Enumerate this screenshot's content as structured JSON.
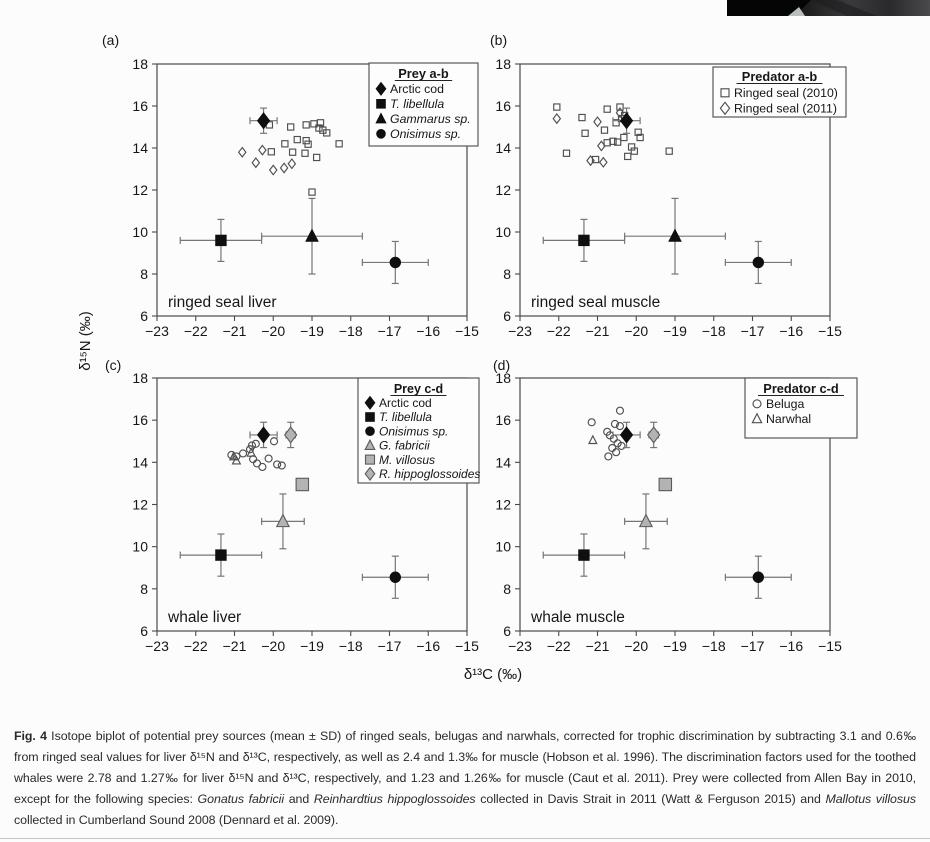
{
  "figure": {
    "x_axis_label": "δ¹³C (‰)",
    "y_axis_label": "δ¹⁵N (‰)"
  },
  "colors": {
    "text": "#161616",
    "axis": "#4a4a4a",
    "error_bar": "#767676",
    "marker_black": "#0f0f0f",
    "marker_open_stroke": "#4f4f4f",
    "marker_gray": "#b3b3b3",
    "marker_gray_stroke": "#5a5a5a",
    "legend_bg": "#fdfdfd",
    "page_bg": "#fcfcfc"
  },
  "chart_data": [
    {
      "id": "a",
      "type": "scatter",
      "panel_label": "(a)",
      "inner_label": "ringed seal liver",
      "xlim": [
        -23,
        -15
      ],
      "ylim": [
        6,
        18
      ],
      "x_ticks": [
        -23,
        -22,
        -21,
        -20,
        -19,
        -18,
        -17,
        -16,
        -15
      ],
      "y_ticks": [
        6,
        8,
        10,
        12,
        14,
        16,
        18
      ],
      "legend": {
        "title": "Prey a-b",
        "items": [
          {
            "marker": "filled-diamond",
            "label": "Arctic cod",
            "italic": false
          },
          {
            "marker": "filled-square",
            "label": "T. libellula",
            "italic": true
          },
          {
            "marker": "filled-triangle",
            "label": "Gammarus sp.",
            "italic": true
          },
          {
            "marker": "filled-circle",
            "label": "Onisimus sp.",
            "italic": true
          }
        ]
      },
      "mean_points": [
        {
          "name": "Arctic cod",
          "marker": "filled-diamond",
          "x": -20.25,
          "y": 15.3,
          "xerr": 0.35,
          "yerr": 0.6
        },
        {
          "name": "T. libellula",
          "marker": "filled-square",
          "x": -21.35,
          "y": 9.6,
          "xerr": 1.05,
          "yerr": 1.0
        },
        {
          "name": "Gammarus sp.",
          "marker": "filled-triangle",
          "x": -19.0,
          "y": 9.8,
          "xerr": 1.3,
          "yerr": 1.8
        },
        {
          "name": "Onisimus sp.",
          "marker": "filled-circle",
          "x": -16.85,
          "y": 8.55,
          "xerr": 0.85,
          "yerr": 1.0
        }
      ],
      "series": [
        {
          "name": "Ringed seal (2010)",
          "marker": "open-square",
          "points": [
            [
              -20.1,
              15.1
            ],
            [
              -19.55,
              15.0
            ],
            [
              -19.38,
              14.4
            ],
            [
              -19.15,
              15.1
            ],
            [
              -18.95,
              15.15
            ],
            [
              -18.82,
              14.95
            ],
            [
              -18.78,
              15.2
            ],
            [
              -18.72,
              14.85
            ],
            [
              -18.62,
              14.72
            ],
            [
              -19.15,
              14.35
            ],
            [
              -19.1,
              14.18
            ],
            [
              -19.7,
              14.2
            ],
            [
              -19.5,
              13.8
            ],
            [
              -19.18,
              13.75
            ],
            [
              -18.88,
              13.55
            ],
            [
              -18.3,
              14.2
            ],
            [
              -20.05,
              13.82
            ],
            [
              -19.0,
              11.9
            ]
          ]
        },
        {
          "name": "Ringed seal (2011)",
          "marker": "open-diamond",
          "points": [
            [
              -20.8,
              13.8
            ],
            [
              -20.45,
              13.3
            ],
            [
              -20.0,
              12.95
            ],
            [
              -19.72,
              13.05
            ],
            [
              -19.52,
              13.25
            ],
            [
              -20.28,
              13.9
            ]
          ]
        }
      ]
    },
    {
      "id": "b",
      "type": "scatter",
      "panel_label": "(b)",
      "inner_label": "ringed seal muscle",
      "xlim": [
        -23,
        -15
      ],
      "ylim": [
        6,
        18
      ],
      "x_ticks": [
        -23,
        -22,
        -21,
        -20,
        -19,
        -18,
        -17,
        -16,
        -15
      ],
      "y_ticks": [
        6,
        8,
        10,
        12,
        14,
        16,
        18
      ],
      "legend": {
        "title": "Predator a-b",
        "items": [
          {
            "marker": "open-square",
            "label": "Ringed seal (2010)",
            "italic": false
          },
          {
            "marker": "open-diamond",
            "label": "Ringed seal (2011)",
            "italic": false
          }
        ]
      },
      "mean_points": [
        {
          "name": "Arctic cod",
          "marker": "filled-diamond",
          "x": -20.25,
          "y": 15.3,
          "xerr": 0.35,
          "yerr": 0.6
        },
        {
          "name": "T. libellula",
          "marker": "filled-square",
          "x": -21.35,
          "y": 9.6,
          "xerr": 1.05,
          "yerr": 1.0
        },
        {
          "name": "Gammarus sp.",
          "marker": "filled-triangle",
          "x": -19.0,
          "y": 9.8,
          "xerr": 1.3,
          "yerr": 1.8
        },
        {
          "name": "Onisimus sp.",
          "marker": "filled-circle",
          "x": -16.85,
          "y": 8.55,
          "xerr": 0.85,
          "yerr": 1.0
        }
      ],
      "series": [
        {
          "name": "Ringed seal (2010)",
          "marker": "open-square",
          "points": [
            [
              -22.05,
              15.95
            ],
            [
              -21.4,
              15.45
            ],
            [
              -20.75,
              15.85
            ],
            [
              -20.42,
              15.95
            ],
            [
              -20.3,
              15.55
            ],
            [
              -21.32,
              14.7
            ],
            [
              -20.82,
              14.85
            ],
            [
              -20.52,
              15.2
            ],
            [
              -20.38,
              15.4
            ],
            [
              -20.32,
              14.5
            ],
            [
              -20.6,
              14.32
            ],
            [
              -20.75,
              14.25
            ],
            [
              -20.48,
              14.28
            ],
            [
              -19.95,
              14.75
            ],
            [
              -19.9,
              14.5
            ],
            [
              -20.12,
              14.05
            ],
            [
              -20.05,
              13.85
            ],
            [
              -20.22,
              13.6
            ],
            [
              -21.8,
              13.75
            ],
            [
              -21.05,
              13.45
            ],
            [
              -19.15,
              13.85
            ]
          ]
        },
        {
          "name": "Ringed seal (2011)",
          "marker": "open-diamond",
          "points": [
            [
              -22.05,
              15.4
            ],
            [
              -21.0,
              15.25
            ],
            [
              -20.42,
              15.68
            ],
            [
              -20.9,
              14.1
            ],
            [
              -21.18,
              13.4
            ],
            [
              -20.85,
              13.32
            ]
          ]
        }
      ]
    },
    {
      "id": "c",
      "type": "scatter",
      "panel_label": "(c)",
      "inner_label": "whale liver",
      "xlim": [
        -23,
        -15
      ],
      "ylim": [
        6,
        18
      ],
      "x_ticks": [
        -23,
        -22,
        -21,
        -20,
        -19,
        -18,
        -17,
        -16,
        -15
      ],
      "y_ticks": [
        6,
        8,
        10,
        12,
        14,
        16,
        18
      ],
      "legend": {
        "title": "Prey c-d",
        "items": [
          {
            "marker": "filled-diamond",
            "label": "Arctic cod",
            "italic": false
          },
          {
            "marker": "filled-square",
            "label": "T. libellula",
            "italic": true
          },
          {
            "marker": "filled-circle",
            "label": "Onisimus sp.",
            "italic": true
          },
          {
            "marker": "gray-triangle",
            "label": "G. fabricii",
            "italic": true
          },
          {
            "marker": "gray-square",
            "label": "M. villosus",
            "italic": true
          },
          {
            "marker": "gray-diamond",
            "label": "R. hippoglossoides",
            "italic": true
          }
        ]
      },
      "mean_points": [
        {
          "name": "Arctic cod",
          "marker": "filled-diamond",
          "x": -20.25,
          "y": 15.3,
          "xerr": 0.35,
          "yerr": 0.6
        },
        {
          "name": "T. libellula",
          "marker": "filled-square",
          "x": -21.35,
          "y": 9.6,
          "xerr": 1.05,
          "yerr": 1.0
        },
        {
          "name": "Onisimus sp.",
          "marker": "filled-circle",
          "x": -16.85,
          "y": 8.55,
          "xerr": 0.85,
          "yerr": 1.0
        },
        {
          "name": "G. fabricii",
          "marker": "gray-triangle",
          "x": -19.75,
          "y": 11.2,
          "xerr": 0.55,
          "yerr": 1.3
        },
        {
          "name": "M. villosus",
          "marker": "gray-square",
          "x": -19.25,
          "y": 12.95
        },
        {
          "name": "R. hippoglossoides",
          "marker": "gray-diamond",
          "x": -19.55,
          "y": 15.3,
          "xerr": 0.12,
          "yerr": 0.6
        }
      ],
      "series": [
        {
          "name": "Beluga",
          "marker": "open-circle",
          "points": [
            [
              -19.98,
              15.0
            ],
            [
              -20.55,
              14.8
            ],
            [
              -20.45,
              14.88
            ],
            [
              -21.08,
              14.35
            ],
            [
              -20.95,
              14.28
            ],
            [
              -20.78,
              14.42
            ],
            [
              -20.52,
              14.15
            ],
            [
              -20.42,
              13.95
            ],
            [
              -20.28,
              13.78
            ],
            [
              -20.12,
              14.18
            ],
            [
              -19.9,
              13.9
            ],
            [
              -19.78,
              13.85
            ],
            [
              -20.6,
              14.62
            ]
          ]
        },
        {
          "name": "Narwhal",
          "marker": "open-triangle",
          "points": [
            [
              -20.57,
              14.45
            ],
            [
              -20.95,
              14.08
            ],
            [
              -21.02,
              14.28
            ]
          ]
        }
      ]
    },
    {
      "id": "d",
      "type": "scatter",
      "panel_label": "(d)",
      "inner_label": "whale muscle",
      "xlim": [
        -23,
        -15
      ],
      "ylim": [
        6,
        18
      ],
      "x_ticks": [
        -23,
        -22,
        -21,
        -20,
        -19,
        -18,
        -17,
        -16,
        -15
      ],
      "y_ticks": [
        6,
        8,
        10,
        12,
        14,
        16,
        18
      ],
      "legend": {
        "title": "Predator c-d",
        "items": [
          {
            "marker": "open-circle",
            "label": "Beluga",
            "italic": false
          },
          {
            "marker": "open-triangle",
            "label": "Narwhal",
            "italic": false
          }
        ]
      },
      "mean_points": [
        {
          "name": "Arctic cod",
          "marker": "filled-diamond",
          "x": -20.25,
          "y": 15.3,
          "xerr": 0.35,
          "yerr": 0.6
        },
        {
          "name": "T. libellula",
          "marker": "filled-square",
          "x": -21.35,
          "y": 9.6,
          "xerr": 1.05,
          "yerr": 1.0
        },
        {
          "name": "Onisimus sp.",
          "marker": "filled-circle",
          "x": -16.85,
          "y": 8.55,
          "xerr": 0.85,
          "yerr": 1.0
        },
        {
          "name": "G. fabricii",
          "marker": "gray-triangle",
          "x": -19.75,
          "y": 11.2,
          "xerr": 0.55,
          "yerr": 1.3
        },
        {
          "name": "M. villosus",
          "marker": "gray-square",
          "x": -19.25,
          "y": 12.95
        },
        {
          "name": "R. hippoglossoides",
          "marker": "gray-diamond",
          "x": -19.55,
          "y": 15.3,
          "xerr": 0.12,
          "yerr": 0.6
        }
      ],
      "series": [
        {
          "name": "Beluga",
          "marker": "open-circle",
          "points": [
            [
              -20.42,
              16.45
            ],
            [
              -21.15,
              15.9
            ],
            [
              -20.55,
              15.82
            ],
            [
              -20.42,
              15.72
            ],
            [
              -20.75,
              15.45
            ],
            [
              -20.68,
              15.28
            ],
            [
              -20.58,
              15.12
            ],
            [
              -20.48,
              14.9
            ],
            [
              -20.38,
              14.78
            ],
            [
              -20.62,
              14.68
            ],
            [
              -20.52,
              14.48
            ],
            [
              -20.72,
              14.28
            ]
          ]
        },
        {
          "name": "Narwhal",
          "marker": "open-triangle",
          "points": [
            [
              -21.12,
              15.05
            ]
          ]
        }
      ]
    }
  ],
  "caption": {
    "segments": [
      {
        "text": "Fig. 4",
        "bold": true
      },
      {
        "text": " Isotope biplot of potential prey sources (mean ± SD) of ringed seals, belugas and narwhals, corrected for trophic discrimination by subtracting 3.1 and 0.6‰ from ringed seal values for liver δ¹⁵N and δ¹³C, respectively, as well as 2.4 and 1.3‰ for muscle (Hobson et al. 1996). The discrimination factors used for the toothed whales were 2.78 and 1.27‰ for liver δ¹⁵N and δ¹³C, respectively, and 1.23 and 1.26‰ for muscle (Caut et al. 2011). Prey were collected from Allen Bay in 2010, except for the following species: "
      },
      {
        "text": "Gonatus fabricii",
        "italic": true
      },
      {
        "text": " and "
      },
      {
        "text": "Reinhardtius hippoglossoides",
        "italic": true
      },
      {
        "text": " collected in Davis Strait in 2011 (Watt & Ferguson 2015) and "
      },
      {
        "text": "Mallotus villosus",
        "italic": true
      },
      {
        "text": " collected in Cumberland Sound 2008 (Dennard et al. 2009)."
      }
    ]
  }
}
